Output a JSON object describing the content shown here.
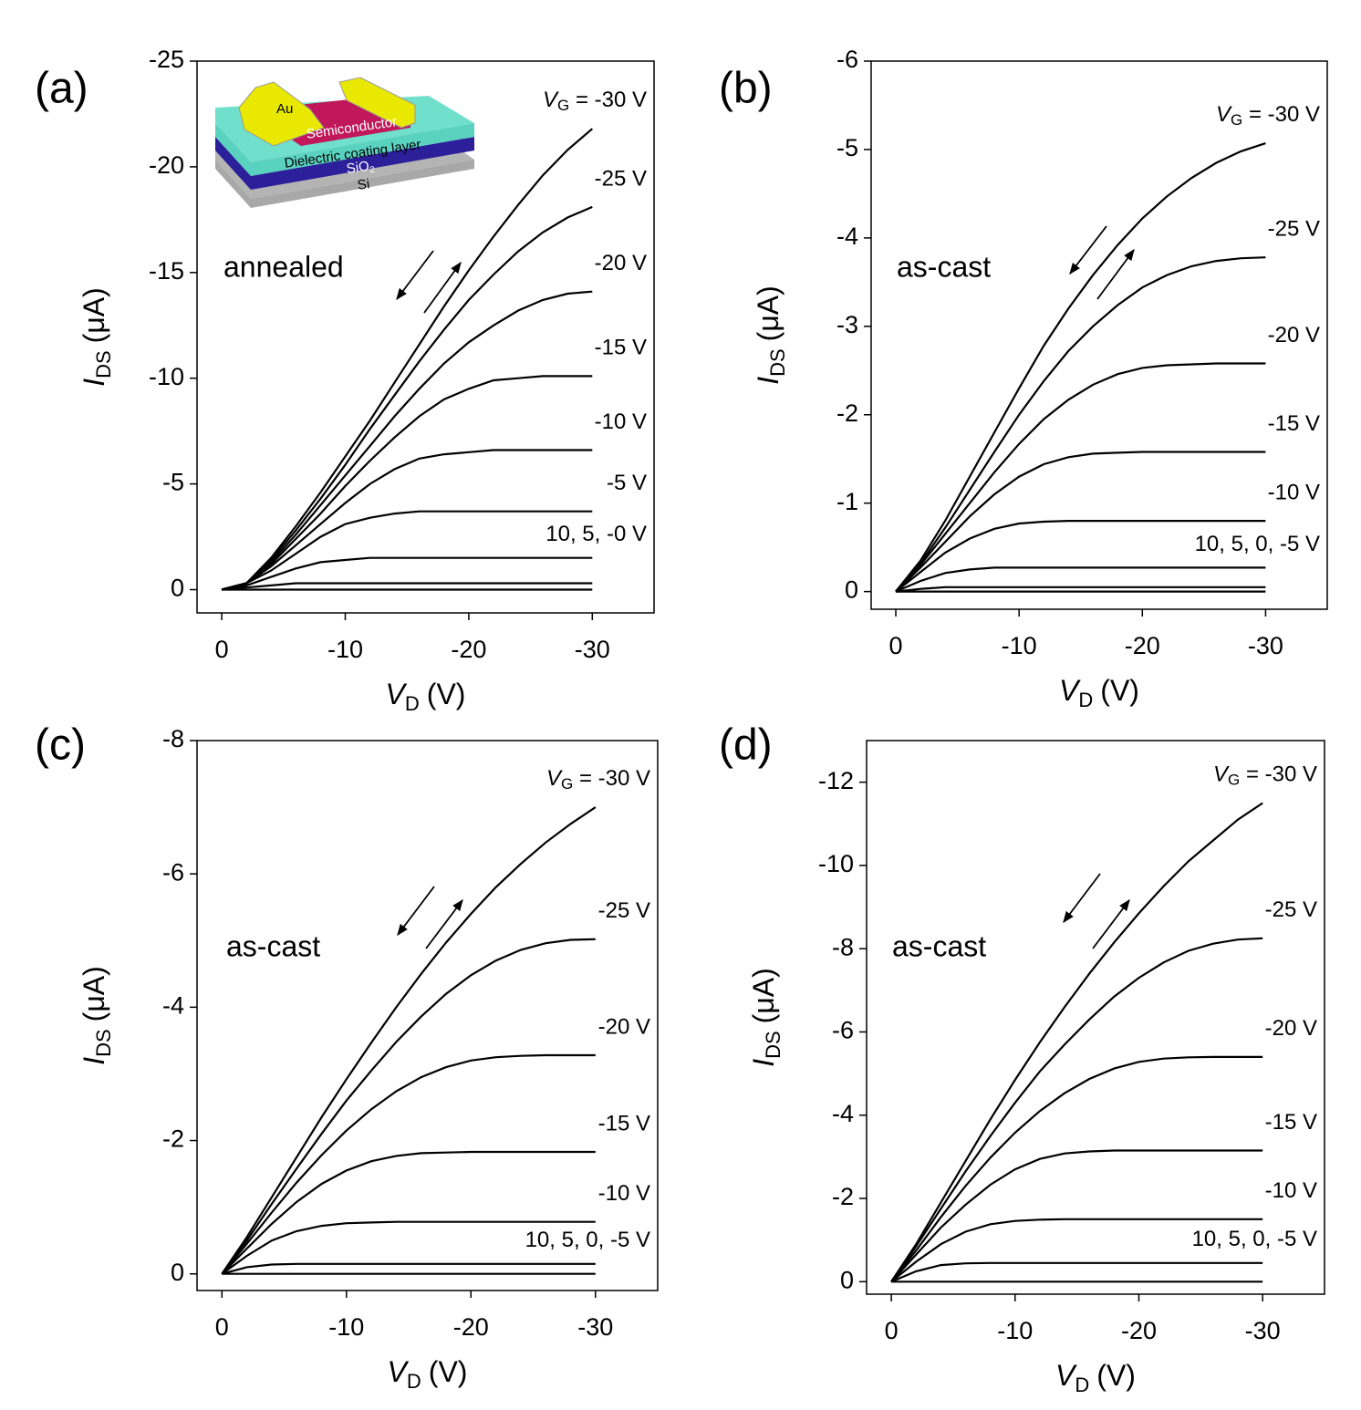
{
  "chart_data": [
    {
      "type": "line",
      "panel_label": "(a)",
      "note": "annealed",
      "xlabel": {
        "symbol": "V",
        "subscript": "D",
        "unit": "(V)"
      },
      "ylabel": {
        "symbol": "I",
        "subscript": "DS",
        "unit": "(μA)"
      },
      "xlim": [
        2,
        -35
      ],
      "xticks": [
        0,
        -10,
        -20,
        -30
      ],
      "ylim": [
        1.1,
        -25
      ],
      "yticks": [
        0,
        -5,
        -10,
        -15,
        -20,
        -25
      ],
      "x": [
        0,
        -2,
        -4,
        -6,
        -8,
        -10,
        -12,
        -14,
        -16,
        -18,
        -20,
        -22,
        -24,
        -26,
        -28,
        -30
      ],
      "group_label": "10, 5, -0 V",
      "inset": {
        "au": "Au",
        "semiconductor": "Semiconductor",
        "dielectric": "Dielectric coating layer",
        "sio2": {
          "text": "SiO",
          "subscript": "2"
        },
        "si": "Si"
      },
      "series": [
        {
          "name": "VG = -30 V",
          "color": "#000000",
          "values": [
            0,
            -0.3,
            -1.5,
            -3,
            -4.6,
            -6.3,
            -8,
            -9.8,
            -11.6,
            -13.4,
            -15.1,
            -16.7,
            -18.2,
            -19.6,
            -20.8,
            -21.8
          ]
        },
        {
          "name": "-25 V",
          "color": "#000000",
          "values": [
            0,
            -0.3,
            -1.4,
            -2.8,
            -4.3,
            -5.9,
            -7.6,
            -9.2,
            -10.8,
            -12.3,
            -13.7,
            -14.9,
            -16,
            -16.9,
            -17.6,
            -18.1
          ]
        },
        {
          "name": "-20 V",
          "color": "#000000",
          "values": [
            0,
            -0.3,
            -1.3,
            -2.6,
            -4,
            -5.4,
            -6.8,
            -8.2,
            -9.5,
            -10.7,
            -11.7,
            -12.5,
            -13.2,
            -13.7,
            -14,
            -14.1
          ]
        },
        {
          "name": "-15 V",
          "color": "#000000",
          "values": [
            0,
            -0.3,
            -1.2,
            -2.4,
            -3.6,
            -4.9,
            -6.1,
            -7.2,
            -8.2,
            -9,
            -9.5,
            -9.9,
            -10,
            -10.1,
            -10.1,
            -10.1
          ]
        },
        {
          "name": "-10 V",
          "color": "#000000",
          "values": [
            0,
            -0.3,
            -1.1,
            -2.1,
            -3.1,
            -4.1,
            -5,
            -5.7,
            -6.2,
            -6.4,
            -6.5,
            -6.6,
            -6.6,
            -6.6,
            -6.6,
            -6.6
          ]
        },
        {
          "name": "-5 V",
          "color": "#000000",
          "values": [
            0,
            -0.3,
            -0.9,
            -1.7,
            -2.5,
            -3.1,
            -3.4,
            -3.6,
            -3.7,
            -3.7,
            -3.7,
            -3.7,
            -3.7,
            -3.7,
            -3.7,
            -3.7
          ]
        },
        {
          "color": "#000000",
          "values": [
            0,
            -0.2,
            -0.6,
            -1,
            -1.3,
            -1.4,
            -1.5,
            -1.5,
            -1.5,
            -1.5,
            -1.5,
            -1.5,
            -1.5,
            -1.5,
            -1.5,
            -1.5
          ]
        },
        {
          "color": "#000000",
          "values": [
            0,
            -0.1,
            -0.2,
            -0.3,
            -0.3,
            -0.3,
            -0.3,
            -0.3,
            -0.3,
            -0.3,
            -0.3,
            -0.3,
            -0.3,
            -0.3,
            -0.3,
            -0.3
          ]
        },
        {
          "color": "#000000",
          "values": [
            0,
            0,
            0,
            0,
            0,
            0,
            0,
            0,
            0,
            0,
            0,
            0,
            0,
            0,
            0,
            0
          ]
        }
      ]
    },
    {
      "type": "line",
      "panel_label": "(b)",
      "note": "as-cast",
      "xlabel": {
        "symbol": "V",
        "subscript": "D",
        "unit": "(V)"
      },
      "ylabel": {
        "symbol": "I",
        "subscript": "DS",
        "unit": "(μA)"
      },
      "xlim": [
        2,
        -35
      ],
      "xticks": [
        0,
        -10,
        -20,
        -30
      ],
      "ylim": [
        0.2,
        -6
      ],
      "yticks": [
        0,
        -1,
        -2,
        -3,
        -4,
        -5,
        -6
      ],
      "x": [
        0,
        -2,
        -4,
        -6,
        -8,
        -10,
        -12,
        -14,
        -16,
        -18,
        -20,
        -22,
        -24,
        -26,
        -28,
        -30
      ],
      "group_label": "10, 5, 0, -5 V",
      "series": [
        {
          "name": "VG = -30 V",
          "color": "#000000",
          "values": [
            0,
            -0.35,
            -0.8,
            -1.3,
            -1.8,
            -2.3,
            -2.78,
            -3.2,
            -3.58,
            -3.92,
            -4.22,
            -4.47,
            -4.68,
            -4.85,
            -4.98,
            -5.07
          ]
        },
        {
          "name": "-25 V",
          "color": "#000000",
          "values": [
            0,
            -0.32,
            -0.72,
            -1.15,
            -1.58,
            -2,
            -2.38,
            -2.72,
            -3,
            -3.24,
            -3.44,
            -3.58,
            -3.68,
            -3.74,
            -3.77,
            -3.78
          ]
        },
        {
          "name": "-20 V",
          "color": "#000000",
          "values": [
            0,
            -0.3,
            -0.65,
            -1,
            -1.35,
            -1.67,
            -1.95,
            -2.17,
            -2.34,
            -2.46,
            -2.53,
            -2.56,
            -2.57,
            -2.58,
            -2.58,
            -2.58
          ]
        },
        {
          "name": "-15 V",
          "color": "#000000",
          "values": [
            0,
            -0.27,
            -0.56,
            -0.85,
            -1.1,
            -1.3,
            -1.44,
            -1.52,
            -1.56,
            -1.57,
            -1.58,
            -1.58,
            -1.58,
            -1.58,
            -1.58,
            -1.58
          ]
        },
        {
          "name": "-10 V",
          "color": "#000000",
          "values": [
            0,
            -0.22,
            -0.44,
            -0.6,
            -0.71,
            -0.77,
            -0.79,
            -0.8,
            -0.8,
            -0.8,
            -0.8,
            -0.8,
            -0.8,
            -0.8,
            -0.8,
            -0.8
          ]
        },
        {
          "color": "#000000",
          "values": [
            0,
            -0.12,
            -0.21,
            -0.25,
            -0.27,
            -0.27,
            -0.27,
            -0.27,
            -0.27,
            -0.27,
            -0.27,
            -0.27,
            -0.27,
            -0.27,
            -0.27,
            -0.27
          ]
        },
        {
          "color": "#000000",
          "values": [
            0,
            -0.03,
            -0.05,
            -0.05,
            -0.05,
            -0.05,
            -0.05,
            -0.05,
            -0.05,
            -0.05,
            -0.05,
            -0.05,
            -0.05,
            -0.05,
            -0.05,
            -0.05
          ]
        },
        {
          "color": "#000000",
          "values": [
            0,
            0,
            0,
            0,
            0,
            0,
            0,
            0,
            0,
            0,
            0,
            0,
            0,
            0,
            0,
            0
          ]
        }
      ]
    },
    {
      "type": "line",
      "panel_label": "(c)",
      "note": "as-cast",
      "xlabel": {
        "symbol": "V",
        "subscript": "D",
        "unit": "(V)"
      },
      "ylabel": {
        "symbol": "I",
        "subscript": "DS",
        "unit": "(μA)"
      },
      "xlim": [
        2,
        -35
      ],
      "xticks": [
        0,
        -10,
        -20,
        -30
      ],
      "ylim": [
        0.25,
        -8
      ],
      "yticks": [
        0,
        -2,
        -4,
        -6,
        -8
      ],
      "x": [
        0,
        -2,
        -4,
        -6,
        -8,
        -10,
        -12,
        -14,
        -16,
        -18,
        -20,
        -22,
        -24,
        -26,
        -28,
        -30
      ],
      "group_label": "10, 5, 0, -5 V",
      "series": [
        {
          "name": "VG = -30 V",
          "color": "#000000",
          "values": [
            0,
            -0.55,
            -1.15,
            -1.75,
            -2.35,
            -2.92,
            -3.47,
            -4,
            -4.5,
            -4.97,
            -5.4,
            -5.8,
            -6.15,
            -6.47,
            -6.75,
            -7
          ]
        },
        {
          "name": "-25 V",
          "color": "#000000",
          "values": [
            0,
            -0.5,
            -1.05,
            -1.58,
            -2.1,
            -2.6,
            -3.05,
            -3.48,
            -3.86,
            -4.2,
            -4.48,
            -4.7,
            -4.86,
            -4.96,
            -5.01,
            -5.02
          ]
        },
        {
          "name": "-20 V",
          "color": "#000000",
          "values": [
            0,
            -0.45,
            -0.92,
            -1.37,
            -1.78,
            -2.15,
            -2.47,
            -2.74,
            -2.95,
            -3.1,
            -3.2,
            -3.25,
            -3.27,
            -3.28,
            -3.28,
            -3.28
          ]
        },
        {
          "name": "-15 V",
          "color": "#000000",
          "values": [
            0,
            -0.38,
            -0.75,
            -1.08,
            -1.35,
            -1.55,
            -1.69,
            -1.77,
            -1.81,
            -1.82,
            -1.83,
            -1.83,
            -1.83,
            -1.83,
            -1.83,
            -1.83
          ]
        },
        {
          "name": "-10 V",
          "color": "#000000",
          "values": [
            0,
            -0.27,
            -0.5,
            -0.64,
            -0.72,
            -0.76,
            -0.77,
            -0.78,
            -0.78,
            -0.78,
            -0.78,
            -0.78,
            -0.78,
            -0.78,
            -0.78,
            -0.78
          ]
        },
        {
          "color": "#000000",
          "values": [
            0,
            -0.1,
            -0.14,
            -0.15,
            -0.15,
            -0.15,
            -0.15,
            -0.15,
            -0.15,
            -0.15,
            -0.15,
            -0.15,
            -0.15,
            -0.15,
            -0.15,
            -0.15
          ]
        },
        {
          "color": "#000000",
          "values": [
            0,
            0,
            0,
            0,
            0,
            0,
            0,
            0,
            0,
            0,
            0,
            0,
            0,
            0,
            0,
            0
          ]
        }
      ]
    },
    {
      "type": "line",
      "panel_label": "(d)",
      "note": "as-cast",
      "xlabel": {
        "symbol": "V",
        "subscript": "D",
        "unit": "(V)"
      },
      "ylabel": {
        "symbol": "I",
        "subscript": "DS",
        "unit": "(μA)"
      },
      "xlim": [
        2,
        -35
      ],
      "xticks": [
        0,
        -10,
        -20,
        -30
      ],
      "ylim": [
        0.3,
        -13
      ],
      "yticks": [
        0,
        -2,
        -4,
        -6,
        -8,
        -10,
        -12
      ],
      "x": [
        0,
        -2,
        -4,
        -6,
        -8,
        -10,
        -12,
        -14,
        -16,
        -18,
        -20,
        -22,
        -24,
        -26,
        -28,
        -30
      ],
      "group_label": "10, 5, 0, -5 V",
      "series": [
        {
          "name": "VG = -30 V",
          "color": "#000000",
          "values": [
            0,
            -0.9,
            -1.9,
            -2.9,
            -3.9,
            -4.85,
            -5.75,
            -6.6,
            -7.4,
            -8.15,
            -8.85,
            -9.5,
            -10.1,
            -10.6,
            -11.1,
            -11.5
          ]
        },
        {
          "name": "-25 V",
          "color": "#000000",
          "values": [
            0,
            -0.85,
            -1.75,
            -2.65,
            -3.5,
            -4.3,
            -5.05,
            -5.7,
            -6.3,
            -6.85,
            -7.3,
            -7.67,
            -7.95,
            -8.12,
            -8.22,
            -8.25
          ]
        },
        {
          "name": "-20 V",
          "color": "#000000",
          "values": [
            0,
            -0.75,
            -1.55,
            -2.3,
            -2.98,
            -3.58,
            -4.1,
            -4.53,
            -4.87,
            -5.12,
            -5.28,
            -5.36,
            -5.39,
            -5.4,
            -5.4,
            -5.4
          ]
        },
        {
          "name": "-15 V",
          "color": "#000000",
          "values": [
            0,
            -0.65,
            -1.3,
            -1.85,
            -2.33,
            -2.7,
            -2.95,
            -3.08,
            -3.13,
            -3.15,
            -3.15,
            -3.15,
            -3.15,
            -3.15,
            -3.15,
            -3.15
          ]
        },
        {
          "name": "-10 V",
          "color": "#000000",
          "values": [
            0,
            -0.48,
            -0.9,
            -1.2,
            -1.38,
            -1.46,
            -1.49,
            -1.5,
            -1.5,
            -1.5,
            -1.5,
            -1.5,
            -1.5,
            -1.5,
            -1.5,
            -1.5
          ]
        },
        {
          "color": "#000000",
          "values": [
            0,
            -0.25,
            -0.4,
            -0.44,
            -0.45,
            -0.45,
            -0.45,
            -0.45,
            -0.45,
            -0.45,
            -0.45,
            -0.45,
            -0.45,
            -0.45,
            -0.45,
            -0.45
          ]
        },
        {
          "color": "#000000",
          "values": [
            0,
            0,
            0,
            0,
            0,
            0,
            0,
            0,
            0,
            0,
            0,
            0,
            0,
            0,
            0,
            0
          ]
        }
      ]
    }
  ]
}
